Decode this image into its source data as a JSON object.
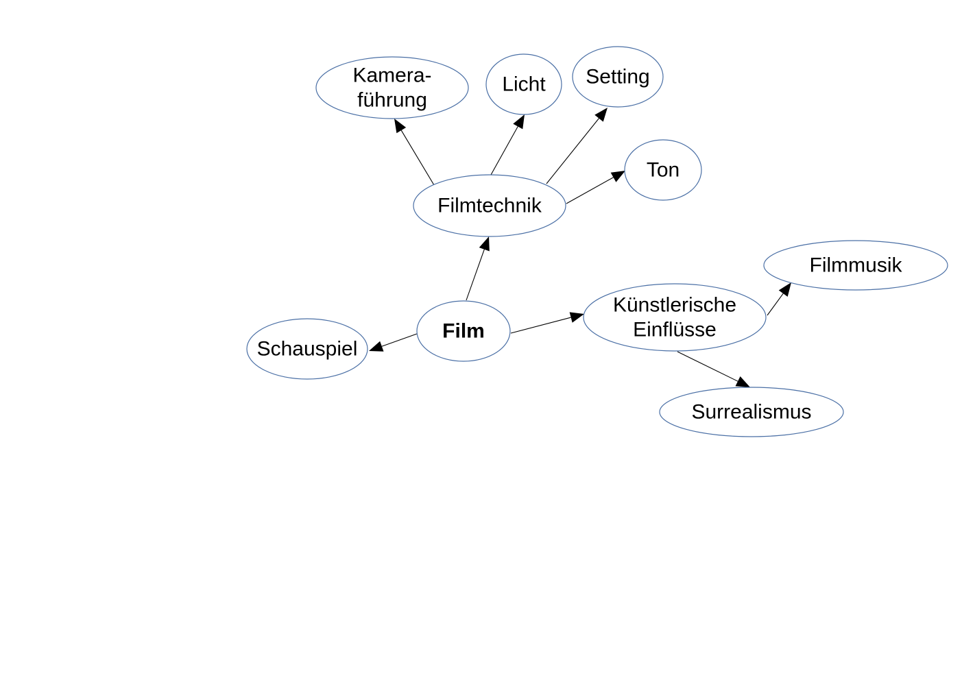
{
  "nodes": [
    {
      "id": "film",
      "lines": [
        "Film"
      ],
      "bold": true
    },
    {
      "id": "filmtechnik",
      "lines": [
        "Filmtechnik"
      ]
    },
    {
      "id": "kamerafuehrung",
      "lines": [
        "Kamera-",
        "führung"
      ]
    },
    {
      "id": "licht",
      "lines": [
        "Licht"
      ]
    },
    {
      "id": "setting",
      "lines": [
        "Setting"
      ]
    },
    {
      "id": "ton",
      "lines": [
        "Ton"
      ]
    },
    {
      "id": "schauspiel",
      "lines": [
        "Schauspiel"
      ]
    },
    {
      "id": "kuenstlerische-einfluesse",
      "lines": [
        "Künstlerische",
        "Einflüsse"
      ]
    },
    {
      "id": "filmmusik",
      "lines": [
        "Filmmusik"
      ]
    },
    {
      "id": "surrealismus",
      "lines": [
        "Surrealismus"
      ]
    }
  ],
  "edges": [
    {
      "from": "film",
      "to": "filmtechnik"
    },
    {
      "from": "film",
      "to": "schauspiel"
    },
    {
      "from": "film",
      "to": "kuenstlerische-einfluesse"
    },
    {
      "from": "filmtechnik",
      "to": "kamerafuehrung"
    },
    {
      "from": "filmtechnik",
      "to": "licht"
    },
    {
      "from": "filmtechnik",
      "to": "setting"
    },
    {
      "from": "filmtechnik",
      "to": "ton"
    },
    {
      "from": "kuenstlerische-einfluesse",
      "to": "filmmusik"
    },
    {
      "from": "kuenstlerische-einfluesse",
      "to": "surrealismus"
    }
  ],
  "colors": {
    "node_border": "#4a6fa5",
    "node_fill": "#ffffff",
    "edge": "#000000",
    "text": "#000000"
  }
}
